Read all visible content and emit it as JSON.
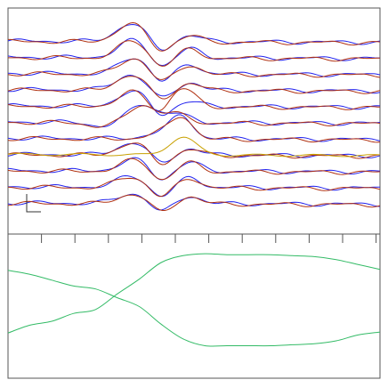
{
  "colors": {
    "background": "#ffffff",
    "frame": "#555555",
    "scale_bar": "#333333"
  },
  "chart_data": [
    {
      "type": "line",
      "panel": "top",
      "axes": "none",
      "grid": false,
      "trace_count": 11,
      "overlay_colors": [
        "#2222ee",
        "#b03010",
        "#c8a000"
      ],
      "legend": "none",
      "scale_bar": "bottom-left"
    },
    {
      "type": "line",
      "panel": "bottom",
      "grid": false,
      "legend": "none",
      "x_ticks": 11,
      "series": [
        {
          "color": "#33bb66",
          "values": [
            0.18,
            0.26,
            0.3,
            0.38,
            0.42,
            0.58,
            0.73,
            0.9,
            0.97,
            0.99,
            0.98,
            0.98,
            0.98,
            0.97,
            0.96,
            0.93,
            0.88,
            0.83
          ]
        },
        {
          "color": "#33bb66",
          "values": [
            0.82,
            0.78,
            0.72,
            0.66,
            0.63,
            0.54,
            0.45,
            0.27,
            0.12,
            0.05,
            0.05,
            0.05,
            0.05,
            0.06,
            0.07,
            0.1,
            0.16,
            0.19
          ]
        }
      ]
    }
  ]
}
